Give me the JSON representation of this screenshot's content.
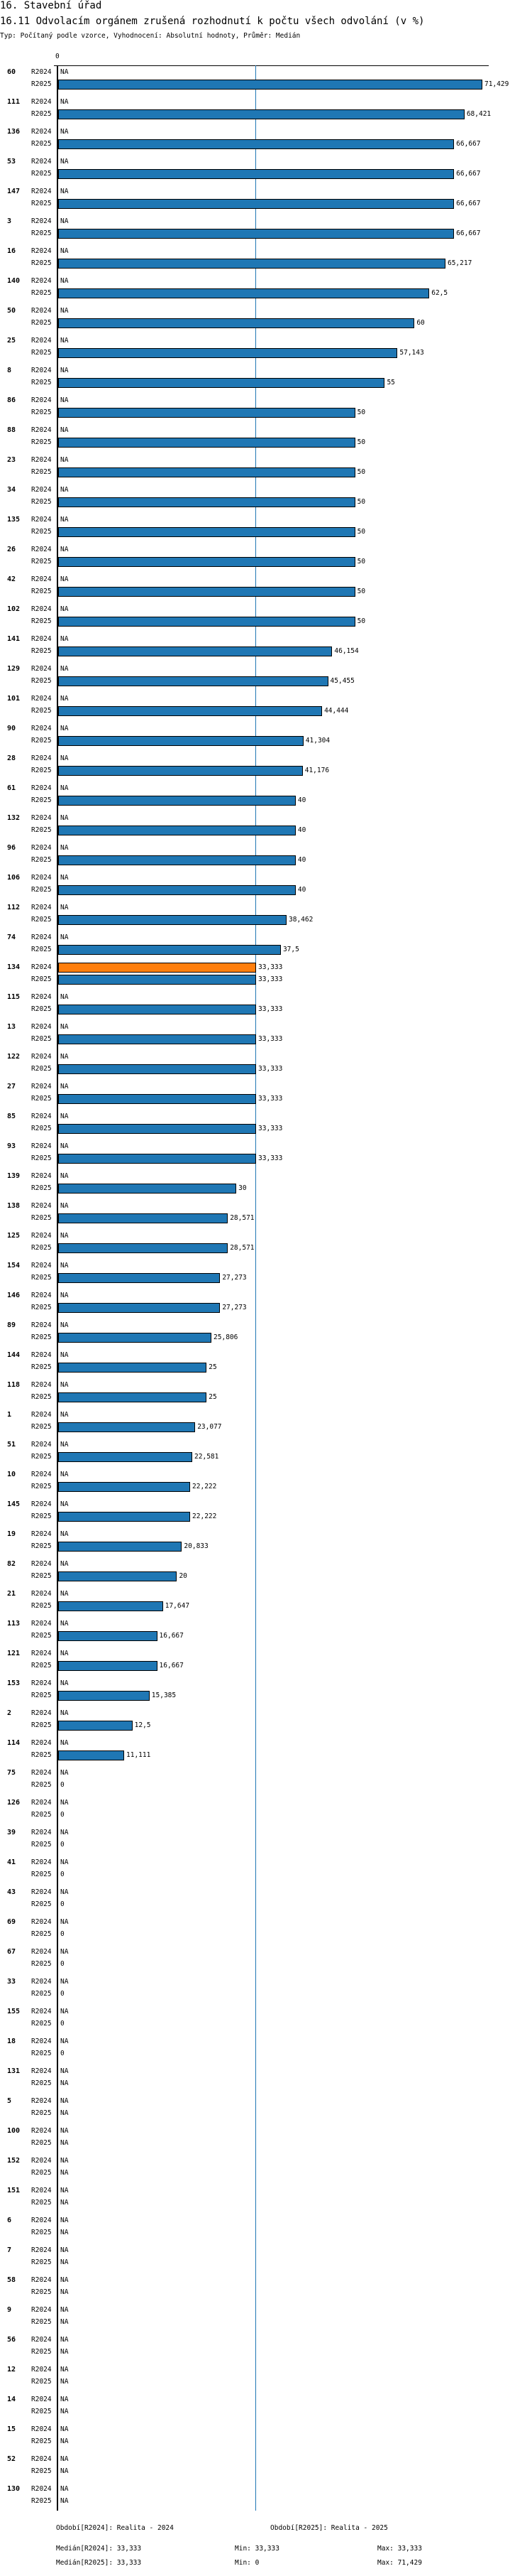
{
  "header": {
    "section_title": "16. Stavební úřad",
    "chart_title": "16.11 Odvolacím orgánem zrušená rozhodnutí k počtu všech odvolání (v %)",
    "subtitle": "Typ: Počítaný podle vzorce, Vyhodnocení: Absolutní hodnoty, Průměr: Medián"
  },
  "chart_data": {
    "type": "bar",
    "orientation": "horizontal",
    "title": "16.11 Odvolacím orgánem zrušená rozhodnutí k počtu všech odvolání (v %)",
    "axis_zero_label": "0",
    "xlim": [
      0,
      71.429
    ],
    "median_line": 33.333,
    "series_names": [
      "R2024",
      "R2025"
    ],
    "colors": {
      "R2024": "#ff7f0e",
      "R2025": "#1f77b4",
      "median": "#1f77b4"
    },
    "groups": [
      {
        "id": "60",
        "R2024": "NA",
        "R2025": "71,429"
      },
      {
        "id": "111",
        "R2024": "NA",
        "R2025": "68,421"
      },
      {
        "id": "136",
        "R2024": "NA",
        "R2025": "66,667"
      },
      {
        "id": "53",
        "R2024": "NA",
        "R2025": "66,667"
      },
      {
        "id": "147",
        "R2024": "NA",
        "R2025": "66,667"
      },
      {
        "id": "3",
        "R2024": "NA",
        "R2025": "66,667"
      },
      {
        "id": "16",
        "R2024": "NA",
        "R2025": "65,217"
      },
      {
        "id": "140",
        "R2024": "NA",
        "R2025": "62,5"
      },
      {
        "id": "50",
        "R2024": "NA",
        "R2025": "60"
      },
      {
        "id": "25",
        "R2024": "NA",
        "R2025": "57,143"
      },
      {
        "id": "8",
        "R2024": "NA",
        "R2025": "55"
      },
      {
        "id": "86",
        "R2024": "NA",
        "R2025": "50"
      },
      {
        "id": "88",
        "R2024": "NA",
        "R2025": "50"
      },
      {
        "id": "23",
        "R2024": "NA",
        "R2025": "50"
      },
      {
        "id": "34",
        "R2024": "NA",
        "R2025": "50"
      },
      {
        "id": "135",
        "R2024": "NA",
        "R2025": "50"
      },
      {
        "id": "26",
        "R2024": "NA",
        "R2025": "50"
      },
      {
        "id": "42",
        "R2024": "NA",
        "R2025": "50"
      },
      {
        "id": "102",
        "R2024": "NA",
        "R2025": "50"
      },
      {
        "id": "141",
        "R2024": "NA",
        "R2025": "46,154"
      },
      {
        "id": "129",
        "R2024": "NA",
        "R2025": "45,455"
      },
      {
        "id": "101",
        "R2024": "NA",
        "R2025": "44,444"
      },
      {
        "id": "90",
        "R2024": "NA",
        "R2025": "41,304"
      },
      {
        "id": "28",
        "R2024": "NA",
        "R2025": "41,176"
      },
      {
        "id": "61",
        "R2024": "NA",
        "R2025": "40"
      },
      {
        "id": "132",
        "R2024": "NA",
        "R2025": "40"
      },
      {
        "id": "96",
        "R2024": "NA",
        "R2025": "40"
      },
      {
        "id": "106",
        "R2024": "NA",
        "R2025": "40"
      },
      {
        "id": "112",
        "R2024": "NA",
        "R2025": "38,462"
      },
      {
        "id": "74",
        "R2024": "NA",
        "R2025": "37,5"
      },
      {
        "id": "134",
        "R2024": "33,333",
        "R2025": "33,333"
      },
      {
        "id": "115",
        "R2024": "NA",
        "R2025": "33,333"
      },
      {
        "id": "13",
        "R2024": "NA",
        "R2025": "33,333"
      },
      {
        "id": "122",
        "R2024": "NA",
        "R2025": "33,333"
      },
      {
        "id": "27",
        "R2024": "NA",
        "R2025": "33,333"
      },
      {
        "id": "85",
        "R2024": "NA",
        "R2025": "33,333"
      },
      {
        "id": "93",
        "R2024": "NA",
        "R2025": "33,333"
      },
      {
        "id": "139",
        "R2024": "NA",
        "R2025": "30"
      },
      {
        "id": "138",
        "R2024": "NA",
        "R2025": "28,571"
      },
      {
        "id": "125",
        "R2024": "NA",
        "R2025": "28,571"
      },
      {
        "id": "154",
        "R2024": "NA",
        "R2025": "27,273"
      },
      {
        "id": "146",
        "R2024": "NA",
        "R2025": "27,273"
      },
      {
        "id": "89",
        "R2024": "NA",
        "R2025": "25,806"
      },
      {
        "id": "144",
        "R2024": "NA",
        "R2025": "25"
      },
      {
        "id": "118",
        "R2024": "NA",
        "R2025": "25"
      },
      {
        "id": "1",
        "R2024": "NA",
        "R2025": "23,077"
      },
      {
        "id": "51",
        "R2024": "NA",
        "R2025": "22,581"
      },
      {
        "id": "10",
        "R2024": "NA",
        "R2025": "22,222"
      },
      {
        "id": "145",
        "R2024": "NA",
        "R2025": "22,222"
      },
      {
        "id": "19",
        "R2024": "NA",
        "R2025": "20,833"
      },
      {
        "id": "82",
        "R2024": "NA",
        "R2025": "20"
      },
      {
        "id": "21",
        "R2024": "NA",
        "R2025": "17,647"
      },
      {
        "id": "113",
        "R2024": "NA",
        "R2025": "16,667"
      },
      {
        "id": "121",
        "R2024": "NA",
        "R2025": "16,667"
      },
      {
        "id": "153",
        "R2024": "NA",
        "R2025": "15,385"
      },
      {
        "id": "2",
        "R2024": "NA",
        "R2025": "12,5"
      },
      {
        "id": "114",
        "R2024": "NA",
        "R2025": "11,111"
      },
      {
        "id": "75",
        "R2024": "NA",
        "R2025": "0"
      },
      {
        "id": "126",
        "R2024": "NA",
        "R2025": "0"
      },
      {
        "id": "39",
        "R2024": "NA",
        "R2025": "0"
      },
      {
        "id": "41",
        "R2024": "NA",
        "R2025": "0"
      },
      {
        "id": "43",
        "R2024": "NA",
        "R2025": "0"
      },
      {
        "id": "69",
        "R2024": "NA",
        "R2025": "0"
      },
      {
        "id": "67",
        "R2024": "NA",
        "R2025": "0"
      },
      {
        "id": "33",
        "R2024": "NA",
        "R2025": "0"
      },
      {
        "id": "155",
        "R2024": "NA",
        "R2025": "0"
      },
      {
        "id": "18",
        "R2024": "NA",
        "R2025": "0"
      },
      {
        "id": "131",
        "R2024": "NA",
        "R2025": "NA"
      },
      {
        "id": "5",
        "R2024": "NA",
        "R2025": "NA"
      },
      {
        "id": "100",
        "R2024": "NA",
        "R2025": "NA"
      },
      {
        "id": "152",
        "R2024": "NA",
        "R2025": "NA"
      },
      {
        "id": "151",
        "R2024": "NA",
        "R2025": "NA"
      },
      {
        "id": "6",
        "R2024": "NA",
        "R2025": "NA"
      },
      {
        "id": "7",
        "R2024": "NA",
        "R2025": "NA"
      },
      {
        "id": "58",
        "R2024": "NA",
        "R2025": "NA"
      },
      {
        "id": "9",
        "R2024": "NA",
        "R2025": "NA"
      },
      {
        "id": "56",
        "R2024": "NA",
        "R2025": "NA"
      },
      {
        "id": "12",
        "R2024": "NA",
        "R2025": "NA"
      },
      {
        "id": "14",
        "R2024": "NA",
        "R2025": "NA"
      },
      {
        "id": "15",
        "R2024": "NA",
        "R2025": "NA"
      },
      {
        "id": "52",
        "R2024": "NA",
        "R2025": "NA"
      },
      {
        "id": "130",
        "R2024": "NA",
        "R2025": "NA"
      }
    ]
  },
  "footer": {
    "period_r2024": "Období[R2024]: Realita - 2024",
    "period_r2025": "Období[R2025]: Realita - 2025",
    "median_r2024": "Medián[R2024]: 33,333",
    "min_r2024": "Min: 33,333",
    "max_r2024": "Max: 33,333",
    "median_r2025": "Medián[R2025]: 33,333",
    "min_r2025": "Min: 0",
    "max_r2025": "Max: 71,429"
  }
}
